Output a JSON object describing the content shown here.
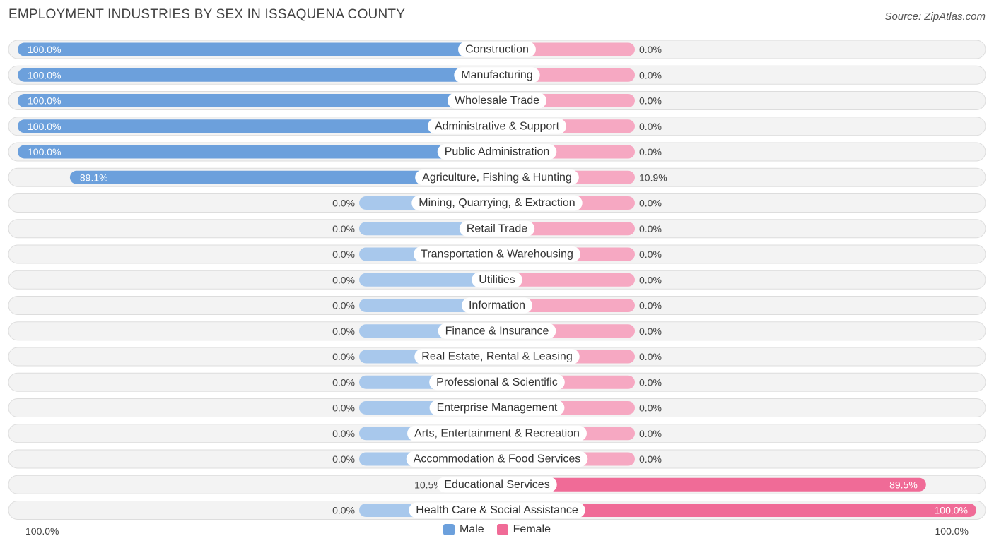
{
  "chart_data": {
    "type": "bar",
    "title": "EMPLOYMENT INDUSTRIES BY SEX IN ISSAQUENA COUNTY",
    "source": "Source: ZipAtlas.com",
    "categories": [
      "Construction",
      "Manufacturing",
      "Wholesale Trade",
      "Administrative & Support",
      "Public Administration",
      "Agriculture, Fishing & Hunting",
      "Mining, Quarrying, & Extraction",
      "Retail Trade",
      "Transportation & Warehousing",
      "Utilities",
      "Information",
      "Finance & Insurance",
      "Real Estate, Rental & Leasing",
      "Professional & Scientific",
      "Enterprise Management",
      "Arts, Entertainment & Recreation",
      "Accommodation & Food Services",
      "Educational Services",
      "Health Care & Social Assistance"
    ],
    "series": [
      {
        "name": "Male",
        "color": "#6ca0dc",
        "values": [
          100.0,
          100.0,
          100.0,
          100.0,
          100.0,
          89.1,
          0.0,
          0.0,
          0.0,
          0.0,
          0.0,
          0.0,
          0.0,
          0.0,
          0.0,
          0.0,
          0.0,
          10.5,
          0.0
        ],
        "labels": [
          "100.0%",
          "100.0%",
          "100.0%",
          "100.0%",
          "100.0%",
          "89.1%",
          "0.0%",
          "0.0%",
          "0.0%",
          "0.0%",
          "0.0%",
          "0.0%",
          "0.0%",
          "0.0%",
          "0.0%",
          "0.0%",
          "0.0%",
          "10.5%",
          "0.0%"
        ]
      },
      {
        "name": "Female",
        "color": "#f06b97",
        "values": [
          0.0,
          0.0,
          0.0,
          0.0,
          0.0,
          10.9,
          0.0,
          0.0,
          0.0,
          0.0,
          0.0,
          0.0,
          0.0,
          0.0,
          0.0,
          0.0,
          0.0,
          89.5,
          100.0
        ],
        "labels": [
          "0.0%",
          "0.0%",
          "0.0%",
          "0.0%",
          "0.0%",
          "10.9%",
          "0.0%",
          "0.0%",
          "0.0%",
          "0.0%",
          "0.0%",
          "0.0%",
          "0.0%",
          "0.0%",
          "0.0%",
          "0.0%",
          "0.0%",
          "89.5%",
          "100.0%"
        ]
      }
    ],
    "xlim": [
      -100,
      100
    ],
    "axis_left_label": "100.0%",
    "axis_right_label": "100.0%",
    "legend_position": "bottom-center"
  },
  "colors": {
    "male_strong": "#6ca0dc",
    "male_light": "#a8c8ec",
    "female_strong": "#f06b97",
    "female_light": "#f6a8c2",
    "row_bg": "#f3f3f3",
    "row_border": "#dddddd"
  }
}
